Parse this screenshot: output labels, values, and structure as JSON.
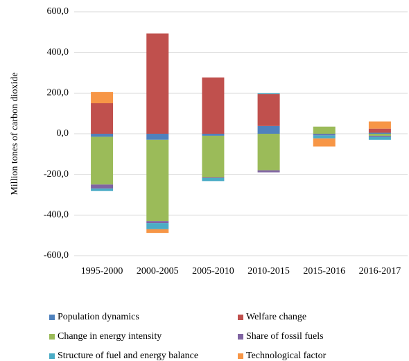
{
  "chart_data": {
    "type": "stacked-bar",
    "y_axis_label": "Million tones of carbon dioxide",
    "categories": [
      "1995-2000",
      "2000-2005",
      "2005-2010",
      "2010-2015",
      "2015-2016",
      "2016-2017"
    ],
    "series": [
      {
        "name": "Population dynamics",
        "color": "#4f81bd",
        "values": [
          -15,
          -30,
          -10,
          38,
          -5,
          5
        ]
      },
      {
        "name": "Welfare change",
        "color": "#c0504d",
        "values": [
          150,
          493,
          277,
          157,
          0,
          20
        ]
      },
      {
        "name": "Change in energy intensity",
        "color": "#9bbb59",
        "values": [
          -235,
          -400,
          -205,
          -180,
          35,
          -10
        ]
      },
      {
        "name": "Share of fossil fuels",
        "color": "#8064a2",
        "values": [
          -20,
          -10,
          -3,
          -10,
          -3,
          -5
        ]
      },
      {
        "name": "Structure of fuel and energy balance",
        "color": "#4bacc6",
        "values": [
          -12,
          -30,
          -15,
          5,
          -15,
          -15
        ]
      },
      {
        "name": "Technological factor",
        "color": "#f79646",
        "values": [
          55,
          -18,
          0,
          0,
          -40,
          35
        ]
      }
    ],
    "ylim": [
      -600,
      600
    ],
    "yticks": [
      {
        "value": -600,
        "label": "-600,0"
      },
      {
        "value": -400,
        "label": "-400,0"
      },
      {
        "value": -200,
        "label": "-200,0"
      },
      {
        "value": 0,
        "label": "0,0"
      },
      {
        "value": 200,
        "label": "200,0"
      },
      {
        "value": 400,
        "label": "400,0"
      },
      {
        "value": 600,
        "label": "600,0"
      }
    ],
    "grid": true
  }
}
